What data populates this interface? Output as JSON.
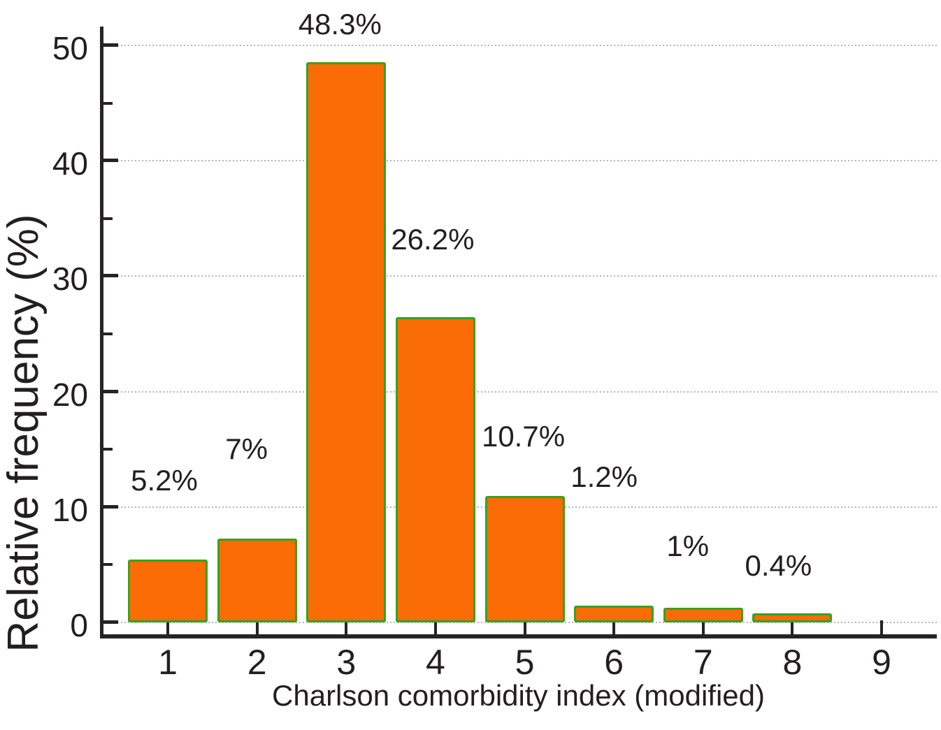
{
  "figure": {
    "background": "#ffffff"
  },
  "chart_data": {
    "type": "bar",
    "title": "",
    "xlabel": "Charlson comorbidity index (modified)",
    "ylabel": "Relative frequency (%)",
    "categories": [
      "1",
      "2",
      "3",
      "4",
      "5",
      "6",
      "7",
      "8",
      "9"
    ],
    "values": [
      5.2,
      7,
      48.3,
      26.2,
      10.7,
      1.2,
      1,
      0.4,
      0
    ],
    "data_labels": [
      "5.2%",
      "7%",
      "48.3%",
      "26.2%",
      "10.7%",
      "1.2%",
      "1%",
      "0.4%",
      ""
    ],
    "data_label_y_values": [
      12.3,
      15.0,
      51.8,
      33.2,
      16.1,
      12.6,
      6.6,
      4.9,
      null
    ],
    "ylim": [
      0,
      50
    ],
    "yticks": [
      0,
      10,
      20,
      30,
      40,
      50
    ],
    "yticks_minor": [
      5,
      15,
      25,
      35,
      45
    ],
    "ytick_labels": [
      "0",
      "10",
      "20",
      "30",
      "40",
      "50"
    ],
    "grid": "horizontal dotted lines at major y ticks",
    "legend": "none",
    "colors": {
      "bar_fill": "#FA6C05",
      "bar_border": "#35A31F",
      "axis": "#272325",
      "grid": "#B6B4B4",
      "text": "#231F20"
    }
  }
}
